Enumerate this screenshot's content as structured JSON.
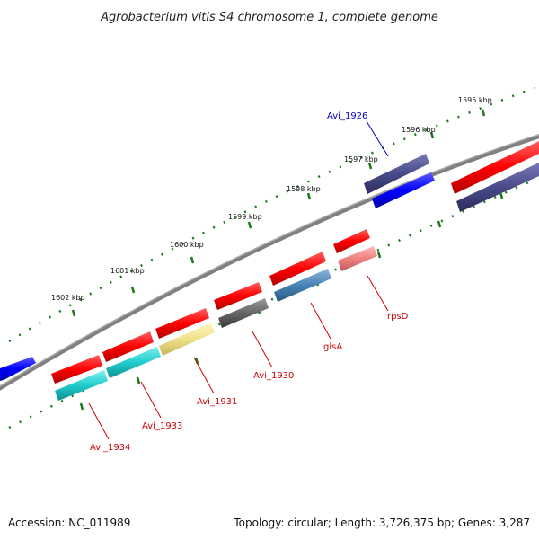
{
  "title": "Agrobacterium vitis S4 chromosome 1, complete genome",
  "footer": {
    "accession": "Accession: NC_011989",
    "summary": "Topology: circular; Length: 3,726,375 bp; Genes: 3,287"
  },
  "ruler": {
    "tick_labels": [
      "1595 kbp",
      "1596 kbp",
      "1597 kbp",
      "1598 kbp",
      "1599 kbp",
      "1600 kbp",
      "1601 kbp",
      "1602 kbp"
    ]
  },
  "gene_labels": [
    {
      "text": "Avi_1926",
      "color": "#0000cc"
    },
    {
      "text": "rpsD",
      "color": "#cc0000"
    },
    {
      "text": "glsA",
      "color": "#cc0000"
    },
    {
      "text": "Avi_1930",
      "color": "#cc0000"
    },
    {
      "text": "Avi_1931",
      "color": "#cc0000"
    },
    {
      "text": "Avi_1933",
      "color": "#cc0000"
    },
    {
      "text": "Avi_1934",
      "color": "#cc0000"
    }
  ],
  "colors": {
    "backbone": "#808080",
    "ruler": "#1a7a1a",
    "cds_forward": "#ff0000",
    "cds_reverse": "#4a4a8a"
  }
}
